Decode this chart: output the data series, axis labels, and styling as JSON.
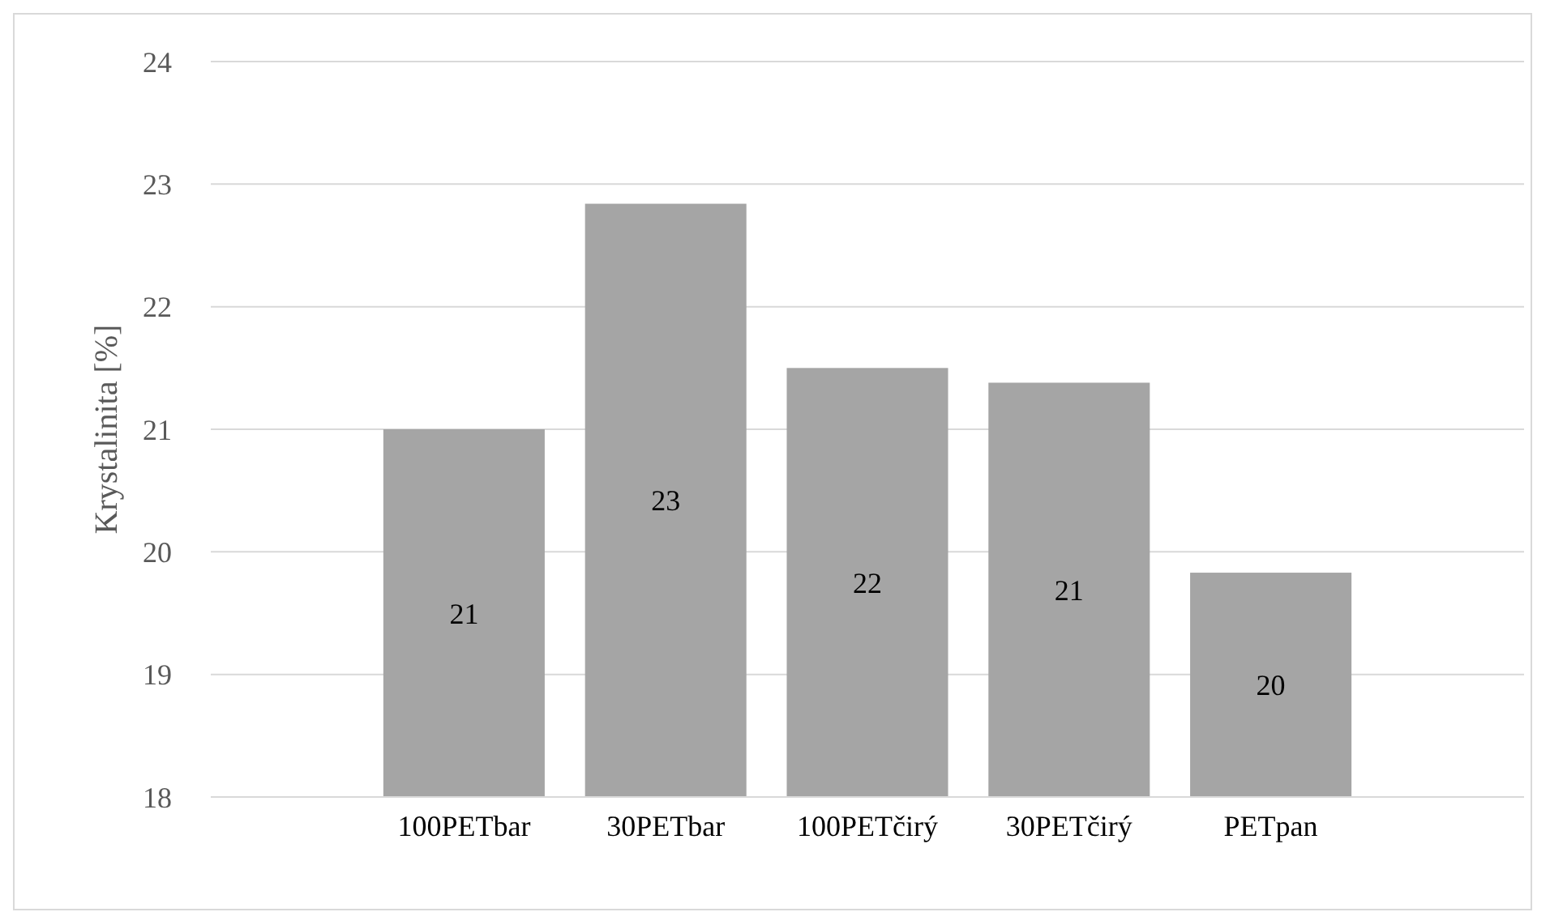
{
  "chart_data": {
    "type": "bar",
    "ylabel": "Krystalinita [%]",
    "categories": [
      "100PETbar",
      "30PETbar",
      "100PETčirý",
      "30PETčirý",
      "PETpan"
    ],
    "values": [
      21.0,
      22.84,
      21.5,
      21.38,
      19.83
    ],
    "value_labels": [
      "21",
      "23",
      "22",
      "21",
      "20"
    ],
    "color": "#a5a5a5",
    "ylim": [
      18,
      24
    ],
    "yticks": [
      18,
      19,
      20,
      21,
      22,
      23,
      24
    ],
    "grid": "y"
  }
}
